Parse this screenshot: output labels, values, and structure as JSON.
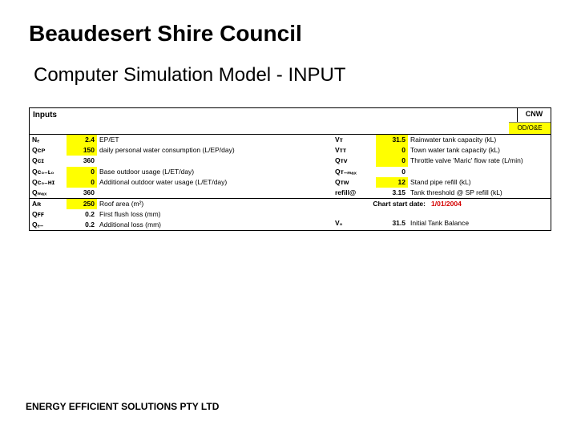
{
  "title": "Beaudesert Shire Council",
  "subtitle": "Computer Simulation Model - INPUT",
  "header": {
    "inputs_label": "Inputs",
    "cnw_label": "CNW",
    "odoe_label": "OD/O&E"
  },
  "left_block1": [
    {
      "sym": "Nₑ",
      "val": "2.4",
      "hl": true,
      "desc": "EP/ET"
    },
    {
      "sym": "Qᴄᴘ",
      "val": "150",
      "hl": true,
      "desc": "daily personal water consumption (L/EP/day)"
    },
    {
      "sym": "Qᴄɪ",
      "val": "360",
      "hl": false,
      "desc": ""
    },
    {
      "sym": "Qᴄ₀₋ʟ₀",
      "val": "0",
      "hl": true,
      "desc": "Base outdoor usage (L/ET/day)"
    },
    {
      "sym": "Qᴄ₀₋ʜɪ",
      "val": "0",
      "hl": true,
      "desc": "Additional outdoor water usage (L/ET/day)"
    },
    {
      "sym": "Qₘₐₓ",
      "val": "360",
      "hl": false,
      "desc": ""
    }
  ],
  "right_block1": [
    {
      "sym": "Vᴛ",
      "val": "31.5",
      "hl": true,
      "desc": "Rainwater tank capacity (kL)"
    },
    {
      "sym": "Vᴛᴛ",
      "val": "0",
      "hl": true,
      "desc": "Town water tank capacity (kL)"
    },
    {
      "sym": "Qᴛᴠ",
      "val": "0",
      "hl": true,
      "desc": "Throttle valve 'Maric' flow rate (L/min)"
    },
    {
      "sym": "Qᴛ₋ₘₐₓ",
      "val": "0",
      "hl": false,
      "desc": ""
    },
    {
      "sym": "Qᴛᴡ",
      "val": "12",
      "hl": true,
      "desc": "Stand pipe refill (kL)"
    },
    {
      "sym": "refill@",
      "val": "3.15",
      "hl": false,
      "desc": "Tank threshold @ SP refill (kL)"
    }
  ],
  "left_block2": [
    {
      "sym": "Aʀ",
      "val": "250",
      "hl": true,
      "desc": "Roof area (m²)"
    },
    {
      "sym": "Qꜰꜰ",
      "val": "0.2",
      "hl": false,
      "desc": "First flush loss (mm)"
    },
    {
      "sym": "Qₑ₋",
      "val": "0.2",
      "hl": false,
      "desc": "Additional loss (mm)"
    }
  ],
  "chart_start": {
    "label": "Chart start date:",
    "value": "1/01/2004"
  },
  "right_block2": [
    {
      "sym": "V₀",
      "val": "31.5",
      "hl": false,
      "desc": "Initial Tank Balance"
    }
  ],
  "footer": "ENERGY EFFICIENT SOLUTIONS PTY LTD",
  "colors": {
    "highlight": "#ffff00",
    "red": "#d40000",
    "border": "#000000",
    "bg": "#ffffff"
  }
}
